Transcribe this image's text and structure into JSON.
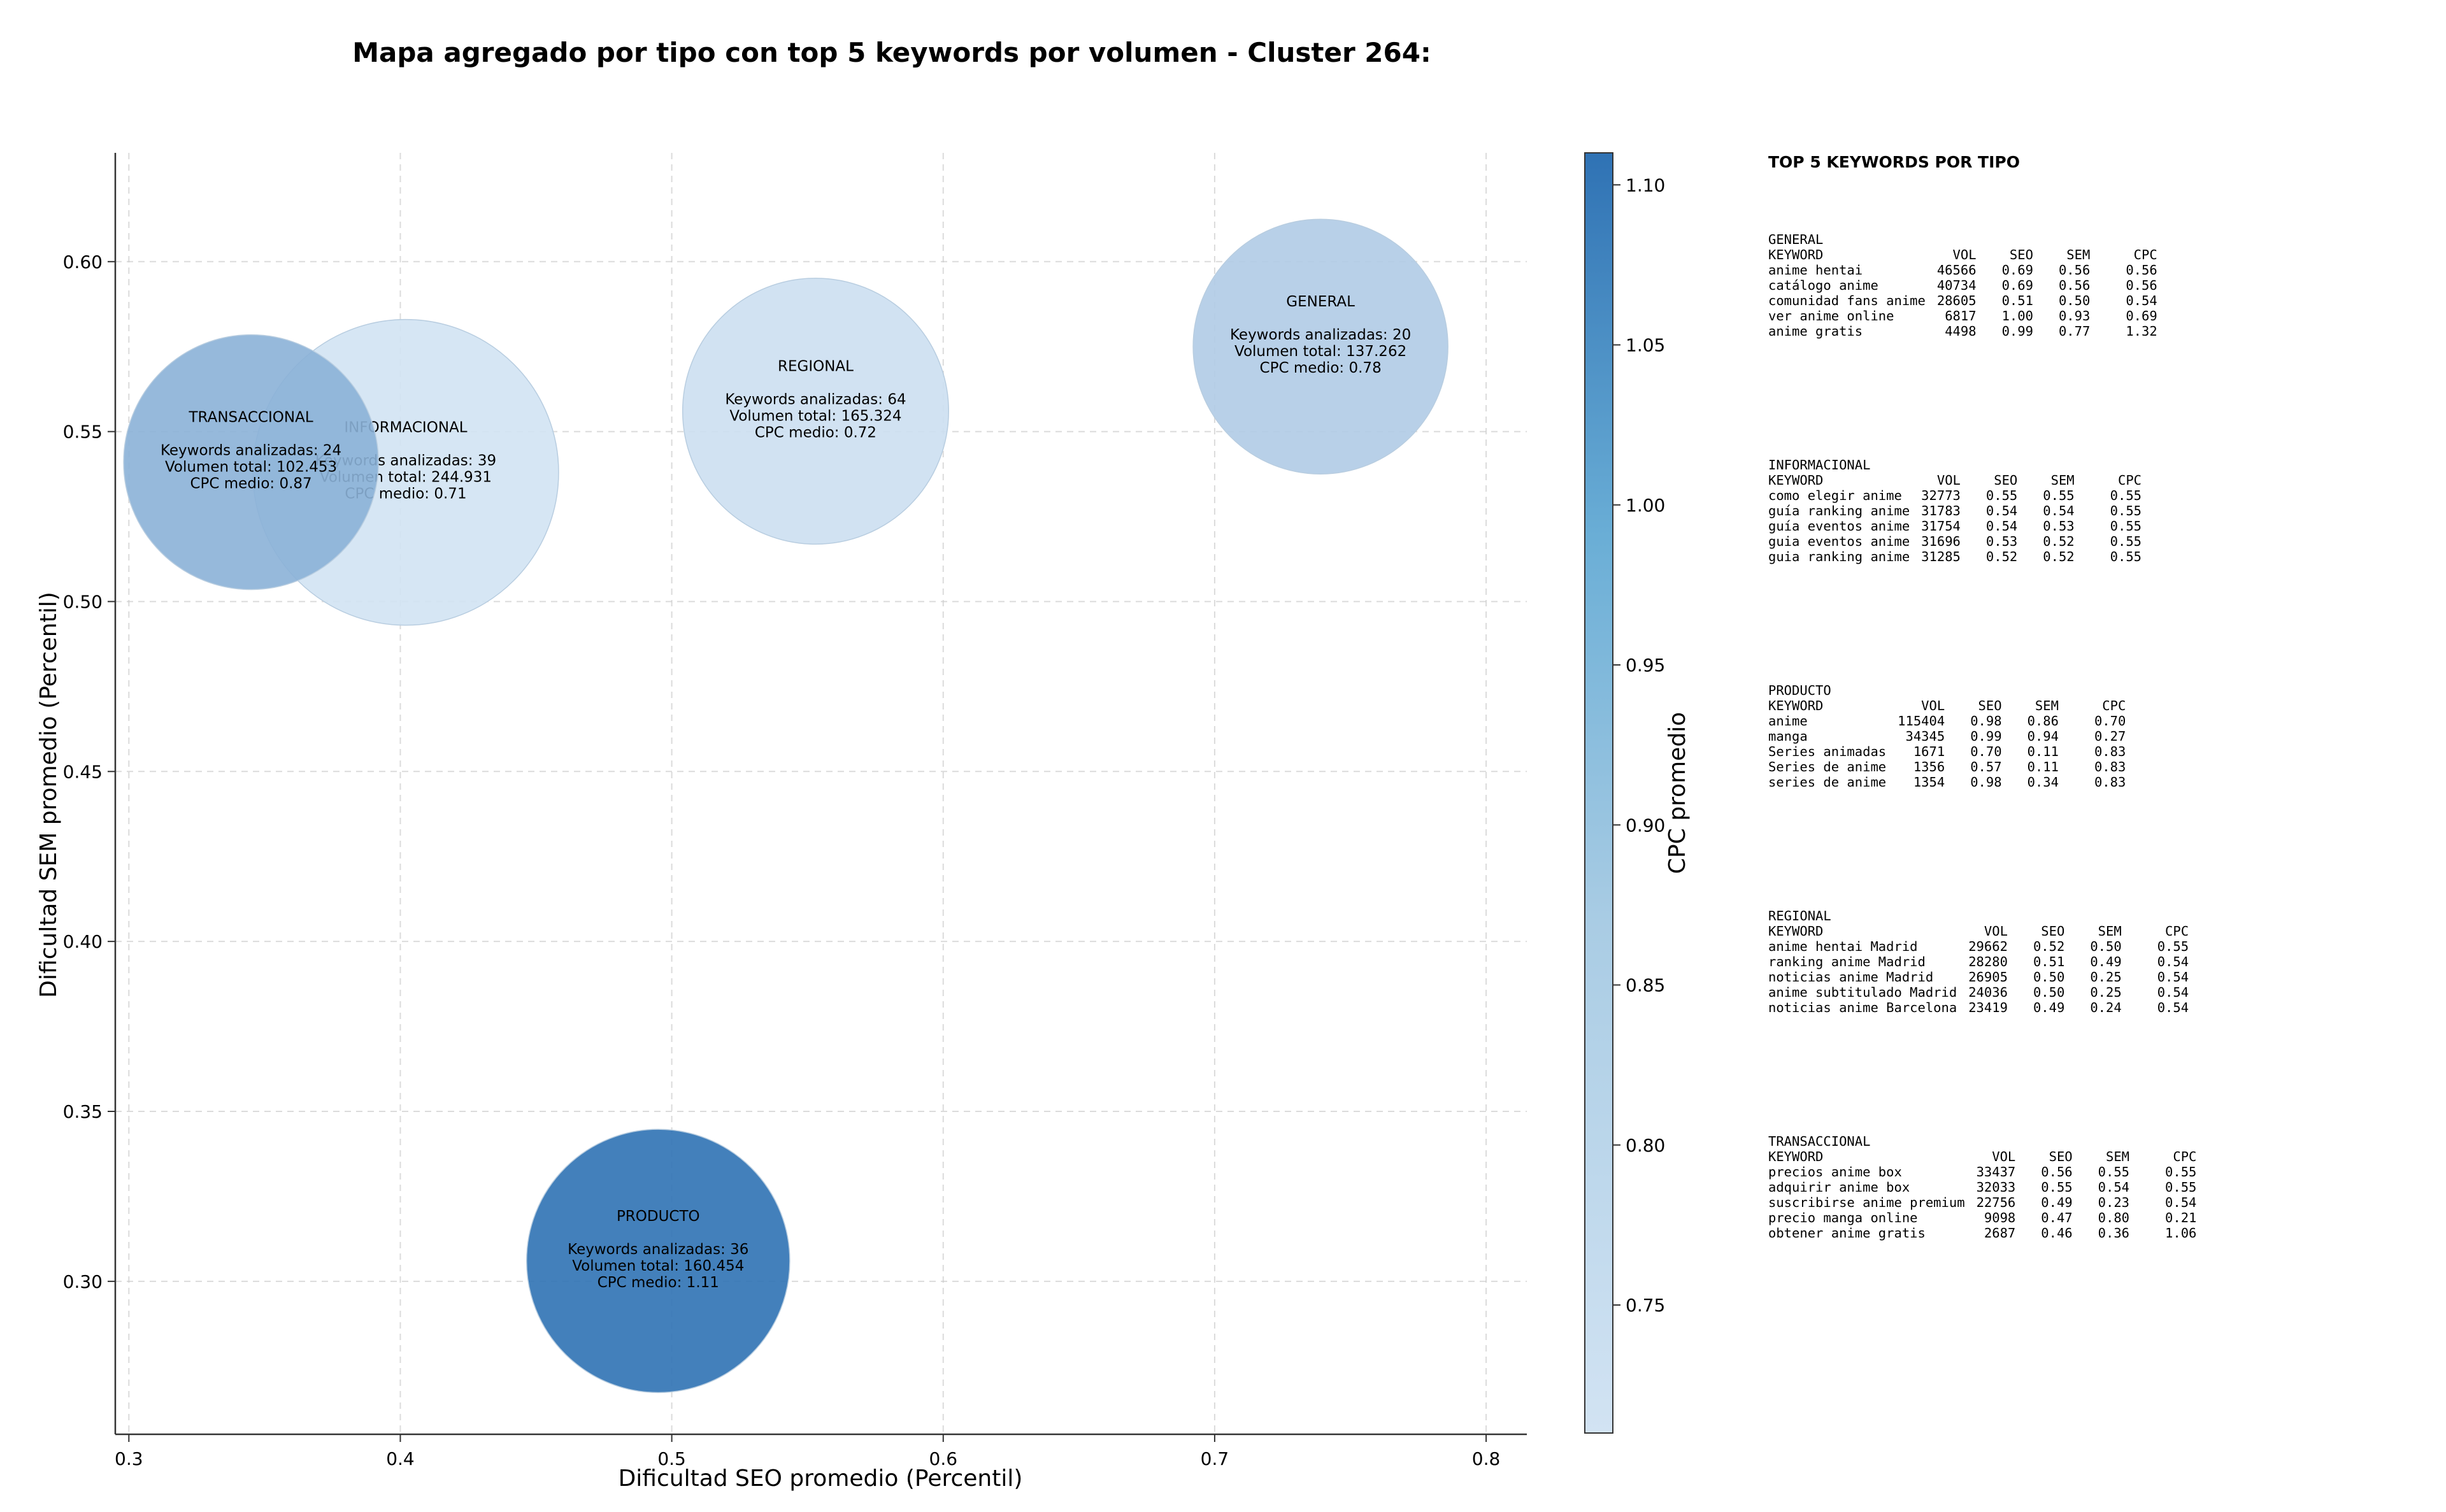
{
  "chart_data": {
    "type": "scatter",
    "title": "Mapa agregado por tipo con top 5 keywords por volumen - Cluster 264:",
    "xlabel": "Dificultad SEO promedio (Percentil)",
    "ylabel": "Dificultad SEM promedio (Percentil)",
    "xlim": [
      0.295,
      0.815
    ],
    "ylim": [
      0.255,
      0.632
    ],
    "xticks": [
      0.3,
      0.4,
      0.5,
      0.6,
      0.7,
      0.8
    ],
    "yticks": [
      0.3,
      0.35,
      0.4,
      0.45,
      0.5,
      0.55,
      0.6
    ],
    "grid": true,
    "colorbar": {
      "label": "CPC promedio",
      "min": 0.71,
      "max": 1.11,
      "ticks": [
        0.75,
        0.8,
        0.85,
        0.9,
        0.95,
        1.0,
        1.05,
        1.1
      ],
      "color_low": "#d2e3f3",
      "color_high": "#2f72b4"
    },
    "points": [
      {
        "label": "INFORMACIONAL",
        "x": 0.402,
        "y": 0.538,
        "cpc": 0.71,
        "keywords": 39,
        "volume": 244931,
        "lines": [
          "INFORMACIONAL",
          "",
          "Keywords analizadas: 39",
          "Volumen total: 244.931",
          "CPC medio: 0.71"
        ]
      },
      {
        "label": "TRANSACCIONAL",
        "x": 0.345,
        "y": 0.541,
        "cpc": 0.87,
        "keywords": 24,
        "volume": 102453,
        "lines": [
          "TRANSACCIONAL",
          "",
          "Keywords analizadas: 24",
          "Volumen total: 102.453",
          "CPC medio: 0.87"
        ]
      },
      {
        "label": "REGIONAL",
        "x": 0.553,
        "y": 0.556,
        "cpc": 0.72,
        "keywords": 64,
        "volume": 165324,
        "lines": [
          "REGIONAL",
          "",
          "Keywords analizadas: 64",
          "Volumen total: 165.324",
          "CPC medio: 0.72"
        ]
      },
      {
        "label": "GENERAL",
        "x": 0.739,
        "y": 0.575,
        "cpc": 0.78,
        "keywords": 20,
        "volume": 137262,
        "lines": [
          "GENERAL",
          "",
          "Keywords analizadas: 20",
          "Volumen total: 137.262",
          "CPC medio: 0.78"
        ]
      },
      {
        "label": "PRODUCTO",
        "x": 0.495,
        "y": 0.306,
        "cpc": 1.11,
        "keywords": 36,
        "volume": 160454,
        "lines": [
          "PRODUCTO",
          "",
          "Keywords analizadas: 36",
          "Volumen total: 160.454",
          "CPC medio: 1.11"
        ]
      }
    ]
  },
  "keywords_panel": {
    "heading": "TOP 5 KEYWORDS POR TIPO",
    "columns": [
      "KEYWORD",
      "VOL",
      "SEO",
      "SEM",
      "CPC"
    ],
    "groups": [
      {
        "name": "GENERAL",
        "rows": [
          [
            "anime hentai",
            "46566",
            "0.69",
            "0.56",
            "0.56"
          ],
          [
            "catálogo anime",
            "40734",
            "0.69",
            "0.56",
            "0.56"
          ],
          [
            "comunidad fans anime",
            "28605",
            "0.51",
            "0.50",
            "0.54"
          ],
          [
            "ver anime online",
            "6817",
            "1.00",
            "0.93",
            "0.69"
          ],
          [
            "anime gratis",
            "4498",
            "0.99",
            "0.77",
            "1.32"
          ]
        ]
      },
      {
        "name": "INFORMACIONAL",
        "rows": [
          [
            "como elegir anime",
            "32773",
            "0.55",
            "0.55",
            "0.55"
          ],
          [
            "guía ranking anime",
            "31783",
            "0.54",
            "0.54",
            "0.55"
          ],
          [
            "guía eventos anime",
            "31754",
            "0.54",
            "0.53",
            "0.55"
          ],
          [
            "guia eventos anime",
            "31696",
            "0.53",
            "0.52",
            "0.55"
          ],
          [
            "guia ranking anime",
            "31285",
            "0.52",
            "0.52",
            "0.55"
          ]
        ]
      },
      {
        "name": "PRODUCTO",
        "rows": [
          [
            "anime",
            "115404",
            "0.98",
            "0.86",
            "0.70"
          ],
          [
            "manga",
            "34345",
            "0.99",
            "0.94",
            "0.27"
          ],
          [
            "Series animadas",
            "1671",
            "0.70",
            "0.11",
            "0.83"
          ],
          [
            "Series de anime",
            "1356",
            "0.57",
            "0.11",
            "0.83"
          ],
          [
            "series de anime",
            "1354",
            "0.98",
            "0.34",
            "0.83"
          ]
        ]
      },
      {
        "name": "REGIONAL",
        "rows": [
          [
            "anime hentai Madrid",
            "29662",
            "0.52",
            "0.50",
            "0.55"
          ],
          [
            "ranking anime Madrid",
            "28280",
            "0.51",
            "0.49",
            "0.54"
          ],
          [
            "noticias anime Madrid",
            "26905",
            "0.50",
            "0.25",
            "0.54"
          ],
          [
            "anime subtitulado Madrid",
            "24036",
            "0.50",
            "0.25",
            "0.54"
          ],
          [
            "noticias anime Barcelona",
            "23419",
            "0.49",
            "0.24",
            "0.54"
          ]
        ]
      },
      {
        "name": "TRANSACCIONAL",
        "rows": [
          [
            "precios anime box",
            "33437",
            "0.56",
            "0.55",
            "0.55"
          ],
          [
            "adquirir anime box",
            "32033",
            "0.55",
            "0.54",
            "0.55"
          ],
          [
            "suscribirse anime premium",
            "22756",
            "0.49",
            "0.23",
            "0.54"
          ],
          [
            "precio manga online",
            "9098",
            "0.47",
            "0.80",
            "0.21"
          ],
          [
            "obtener anime gratis",
            "2687",
            "0.46",
            "0.36",
            "1.06"
          ]
        ]
      }
    ]
  }
}
